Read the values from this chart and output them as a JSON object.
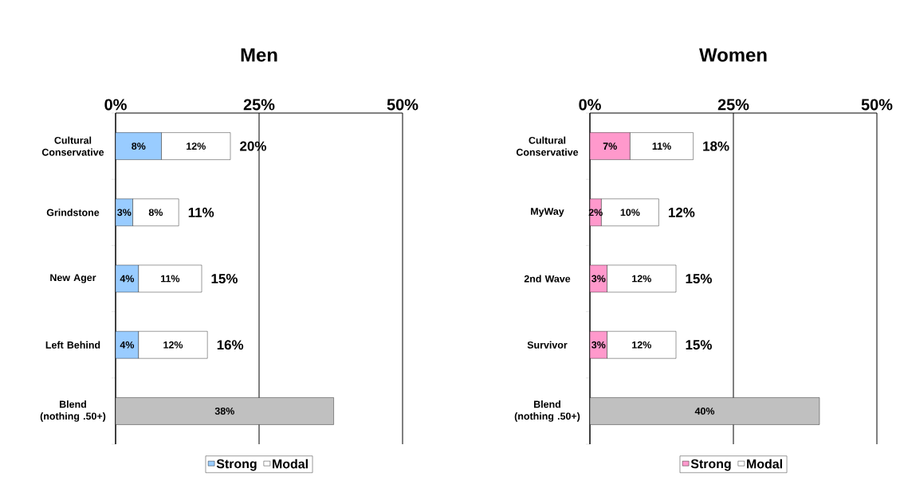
{
  "chart_data": [
    {
      "type": "bar",
      "orientation": "horizontal",
      "stacked": true,
      "title": "Men",
      "categories": [
        "Cultural Conservative",
        "Grindstone",
        "New Ager",
        "Left Behind",
        "Blend (nothing .50+)"
      ],
      "series": [
        {
          "name": "Strong",
          "color": "#99ccff",
          "values": [
            8,
            3,
            4,
            4,
            null
          ],
          "value_labels": [
            "8%",
            "3%",
            "4%",
            "4%",
            null
          ]
        },
        {
          "name": "Modal",
          "color": "#ffffff",
          "values": [
            12,
            8,
            11,
            12,
            null
          ],
          "value_labels": [
            "12%",
            "8%",
            "11%",
            "12%",
            null
          ]
        },
        {
          "color": "#c0c0c0",
          "values": [
            null,
            null,
            null,
            null,
            38
          ],
          "value_labels": [
            null,
            null,
            null,
            null,
            "38%"
          ]
        }
      ],
      "totals": [
        "20%",
        "11%",
        "15%",
        "16%",
        null
      ],
      "xlim": [
        0,
        50
      ],
      "xticks": [
        {
          "value": 0,
          "label": "0%"
        },
        {
          "value": 25,
          "label": "25%"
        },
        {
          "value": 50,
          "label": "50%"
        }
      ],
      "grid": "x",
      "legend": "bottom"
    },
    {
      "type": "bar",
      "orientation": "horizontal",
      "stacked": true,
      "title": "Women",
      "categories": [
        "Cultural Conservative",
        "MyWay",
        "2nd Wave",
        "Survivor",
        "Blend (nothing .50+)"
      ],
      "series": [
        {
          "name": "Strong",
          "color": "#ff99cc",
          "values": [
            7,
            2,
            3,
            3,
            null
          ],
          "value_labels": [
            "7%",
            "2%",
            "3%",
            "3%",
            null
          ]
        },
        {
          "name": "Modal",
          "color": "#ffffff",
          "values": [
            11,
            10,
            12,
            12,
            null
          ],
          "value_labels": [
            "11%",
            "10%",
            "12%",
            "12%",
            null
          ]
        },
        {
          "color": "#c0c0c0",
          "values": [
            null,
            null,
            null,
            null,
            40
          ],
          "value_labels": [
            null,
            null,
            null,
            null,
            "40%"
          ]
        }
      ],
      "totals": [
        "18%",
        "12%",
        "15%",
        "15%",
        null
      ],
      "xlim": [
        0,
        50
      ],
      "xticks": [
        {
          "value": 0,
          "label": "0%"
        },
        {
          "value": 25,
          "label": "25%"
        },
        {
          "value": 50,
          "label": "50%"
        }
      ],
      "grid": "x",
      "legend": "bottom"
    }
  ]
}
